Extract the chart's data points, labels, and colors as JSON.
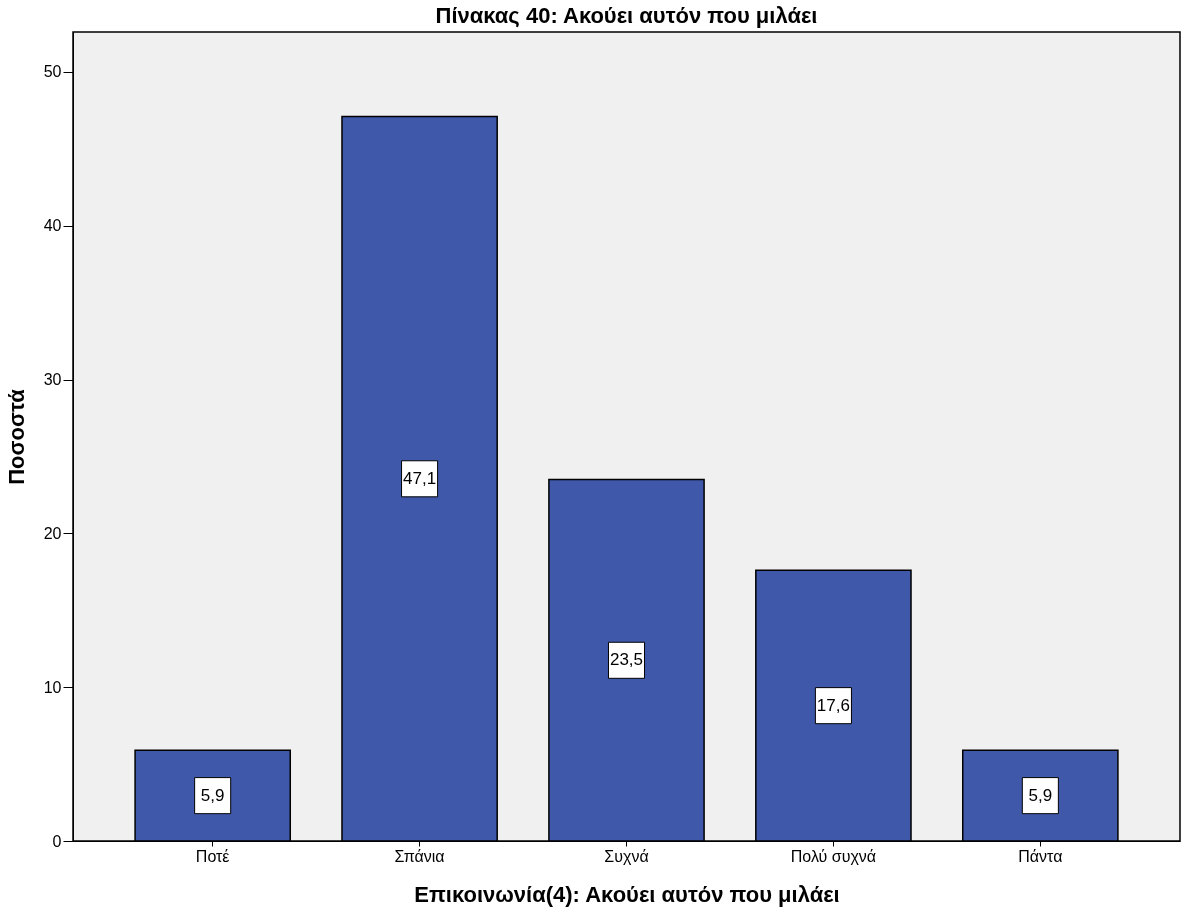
{
  "chart_data": {
    "type": "bar",
    "title": "Πίνακας 40: Ακούει αυτόν που μιλάει",
    "xlabel": "Επικοινωνία(4): Ακούει αυτόν που μιλάει",
    "ylabel": "Ποσοστά",
    "categories": [
      "Ποτέ",
      "Σπάνια",
      "Συχνά",
      "Πολύ συχνά",
      "Πάντα"
    ],
    "values": [
      5.9,
      47.1,
      23.5,
      17.6,
      5.9
    ],
    "value_labels": [
      "5,9",
      "47,1",
      "23,5",
      "17,6",
      "5,9"
    ],
    "color": "#3f58aa",
    "ylim": [
      0,
      52.6
    ],
    "yticks": [
      0,
      10,
      20,
      30,
      40,
      50
    ],
    "grid": false
  }
}
